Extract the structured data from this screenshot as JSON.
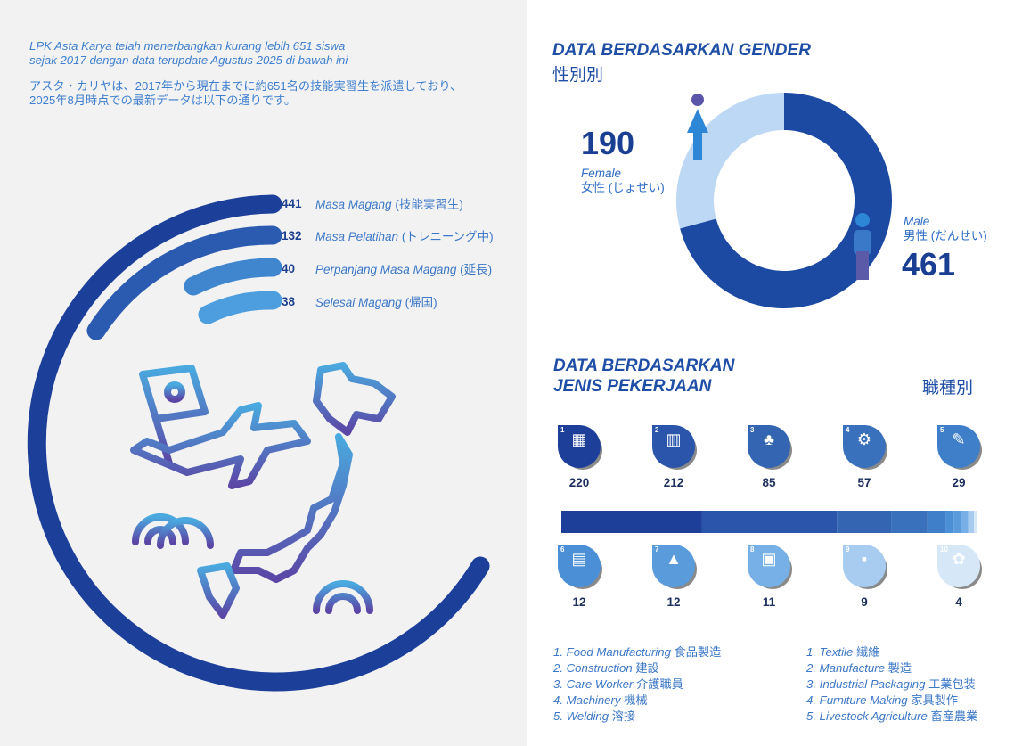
{
  "intro": {
    "id_line1": "LPK Asta Karya telah menerbangkan kurang lebih 651 siswa",
    "id_line2": "sejak 2017 dengan data terupdate Agustus 2025 di bawah ini",
    "jp_line1": "アスタ・カリヤは、2017年から現在までに約651名の技能実習生を派遣しており、",
    "jp_line2": "2025年8月時点での最新データは以下の通りです。"
  },
  "status": [
    {
      "value": "441",
      "label": "Masa Magang",
      "label_jp": "(技能実習生)"
    },
    {
      "value": "132",
      "label": "Masa Pelatihan",
      "label_jp": "(トレニーング中)"
    },
    {
      "value": "40",
      "label": "Perpanjang Masa Magang",
      "label_jp": "(延長)"
    },
    {
      "value": "38",
      "label": "Selesai Magang",
      "label_jp": "(帰国)"
    }
  ],
  "gender": {
    "title": "DATA BERDASARKAN GENDER",
    "title_jp": "性別別",
    "female_value": "190",
    "female_label": "Female",
    "female_label_jp": "女性 (じょせい)",
    "male_value": "461",
    "male_label": "Male",
    "male_label_jp": "男性 (だんせい)"
  },
  "jobs": {
    "title_line1": "DATA BERDASARKAN",
    "title_line2": "JENIS PEKERJAAN",
    "title_jp": "職種別",
    "items": [
      {
        "n": "1",
        "value": "220",
        "color": "#1e3f99",
        "icon": "food-manufacturing-icon"
      },
      {
        "n": "2",
        "value": "212",
        "color": "#2a55aa",
        "icon": "construction-icon"
      },
      {
        "n": "3",
        "value": "85",
        "color": "#3465b3",
        "icon": "care-worker-icon"
      },
      {
        "n": "4",
        "value": "57",
        "color": "#3a71bd",
        "icon": "machinery-icon"
      },
      {
        "n": "5",
        "value": "29",
        "color": "#3f7fca",
        "icon": "welding-icon"
      },
      {
        "n": "6",
        "value": "12",
        "color": "#4b8fd6",
        "icon": "textile-icon"
      },
      {
        "n": "7",
        "value": "12",
        "color": "#5a9bdc",
        "icon": "manufacture-icon"
      },
      {
        "n": "8",
        "value": "11",
        "color": "#76b0e6",
        "icon": "industrial-packaging-icon"
      },
      {
        "n": "9",
        "value": "9",
        "color": "#a7ccef",
        "icon": "furniture-making-icon"
      },
      {
        "n": "10",
        "value": "4",
        "color": "#d6e8f8",
        "icon": "livestock-agriculture-icon"
      }
    ],
    "legend_left": [
      {
        "id": "1. Food Manufacturing",
        "jp": "食品製造"
      },
      {
        "id": "2. Construction",
        "jp": "建設"
      },
      {
        "id": "3. Care Worker",
        "jp": "介護職員"
      },
      {
        "id": "4. Machinery",
        "jp": "機械"
      },
      {
        "id": "5. Welding",
        "jp": "溶接"
      }
    ],
    "legend_right": [
      {
        "id": "1. Textile",
        "jp": "繊維"
      },
      {
        "id": "2. Manufacture",
        "jp": "製造"
      },
      {
        "id": "3. Industrial Packaging",
        "jp": "工業包装"
      },
      {
        "id": "4. Furniture Making",
        "jp": "家具製作"
      },
      {
        "id": "5. Livestock Agriculture",
        "jp": "畜産農業"
      }
    ]
  },
  "chart_data": [
    {
      "type": "bar",
      "categories": [
        "Masa Magang (技能実習生)",
        "Masa Pelatihan (トレニーング中)",
        "Perpanjang Masa Magang (延長)",
        "Selesai Magang (帰国)"
      ],
      "values": [
        441,
        132,
        40,
        38
      ]
    },
    {
      "type": "pie",
      "title": "DATA BERDASARKAN GENDER",
      "categories": [
        "Female",
        "Male"
      ],
      "values": [
        190,
        461
      ],
      "colors": [
        "#bcd8f4",
        "#1c4aa3"
      ]
    },
    {
      "type": "bar",
      "title": "DATA BERDASARKAN JENIS PEKERJAAN",
      "categories": [
        "1",
        "2",
        "3",
        "4",
        "5",
        "6",
        "7",
        "8",
        "9",
        "10"
      ],
      "values": [
        220,
        212,
        85,
        57,
        29,
        12,
        12,
        11,
        9,
        4
      ]
    }
  ]
}
